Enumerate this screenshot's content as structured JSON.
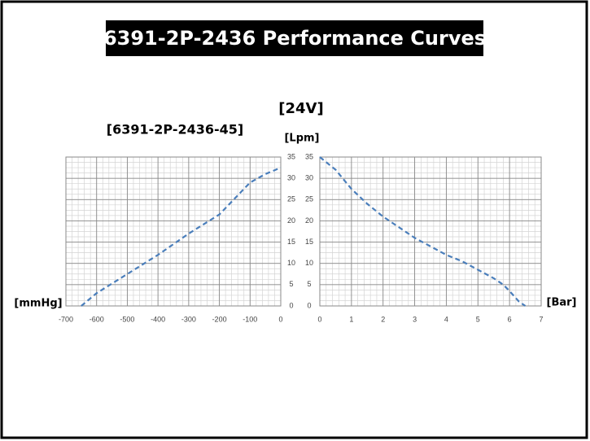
{
  "title": "6391-2P-2436 Performance Curves",
  "subtitle": "[24V]",
  "chart_data": [
    {
      "type": "line",
      "title": "[6391-2P-2436-45]",
      "x_label": "[mmHg]",
      "y_label": "[Lpm]",
      "x": [
        -650,
        -600,
        -500,
        -400,
        -300,
        -200,
        -100,
        -50,
        0
      ],
      "series": [
        {
          "color": "#4a7ebb",
          "values": [
            0,
            3,
            7.5,
            12,
            17,
            21.5,
            29,
            31,
            32.5
          ]
        }
      ],
      "xlim": [
        -700,
        0
      ],
      "xticks": [
        -700,
        -600,
        -500,
        -400,
        -300,
        -200,
        -100,
        0
      ],
      "ylim": [
        0,
        35
      ],
      "yticks": [
        0,
        5,
        10,
        15,
        20,
        25,
        30,
        35
      ],
      "grid": true,
      "line_style": "dashed"
    },
    {
      "type": "line",
      "x_label": "[Bar]",
      "x": [
        0,
        0.5,
        1,
        1.5,
        2,
        2.5,
        3,
        3.5,
        4,
        4.5,
        5,
        5.5,
        5.8,
        6,
        6.3,
        6.5
      ],
      "series": [
        {
          "color": "#4a7ebb",
          "values": [
            35,
            32,
            27.5,
            24,
            21,
            18.5,
            16,
            14,
            12,
            10.5,
            8.5,
            6.5,
            5,
            3.5,
            1,
            0
          ]
        }
      ],
      "xlim": [
        0,
        7
      ],
      "xticks": [
        0,
        1,
        2,
        3,
        4,
        5,
        6,
        7
      ],
      "ylim": [
        0,
        35
      ],
      "yticks": [
        0,
        5,
        10,
        15,
        20,
        25,
        30,
        35
      ],
      "grid": true,
      "line_style": "dashed"
    }
  ]
}
